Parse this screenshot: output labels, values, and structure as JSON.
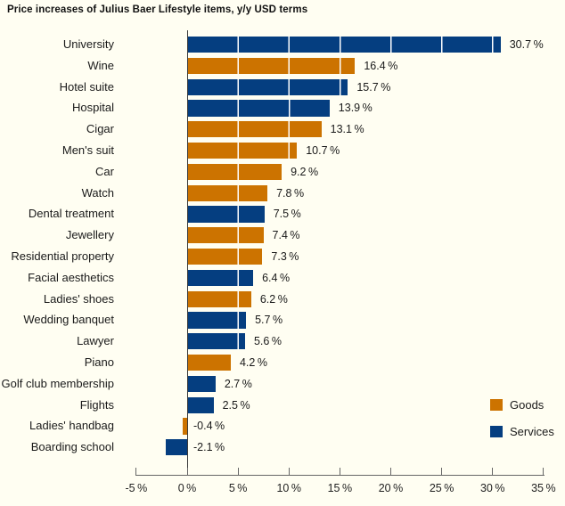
{
  "title": "Price increases of Julius Baer Lifestyle items, y/y USD terms",
  "chart_data": {
    "type": "bar",
    "orientation": "horizontal",
    "title": "Price increases of Julius Baer Lifestyle items, y/y USD terms",
    "unit": "%",
    "xlim": [
      -5,
      35
    ],
    "x_ticks": [
      -5,
      0,
      5,
      10,
      15,
      20,
      25,
      30,
      35
    ],
    "x_tick_labels": [
      "-5 %",
      "0 %",
      "5 %",
      "10 %",
      "15 %",
      "20 %",
      "25 %",
      "30 %",
      "35 %"
    ],
    "grid": "white vertical gridlines at 5% steps over bars",
    "background": "#FFFEF2",
    "colors": {
      "Goods": "#CC7300",
      "Services": "#053E80"
    },
    "legend_position": "bottom-right",
    "legend": [
      {
        "label": "Goods",
        "color": "#CC7300"
      },
      {
        "label": "Services",
        "color": "#053E80"
      }
    ],
    "items": [
      {
        "label": "University",
        "value": 30.7,
        "group": "Services",
        "value_label": "30.7 %"
      },
      {
        "label": "Wine",
        "value": 16.4,
        "group": "Goods",
        "value_label": "16.4 %"
      },
      {
        "label": "Hotel suite",
        "value": 15.7,
        "group": "Services",
        "value_label": "15.7 %"
      },
      {
        "label": "Hospital",
        "value": 13.9,
        "group": "Services",
        "value_label": "13.9 %"
      },
      {
        "label": "Cigar",
        "value": 13.1,
        "group": "Goods",
        "value_label": "13.1 %"
      },
      {
        "label": "Men's suit",
        "value": 10.7,
        "group": "Goods",
        "value_label": "10.7 %"
      },
      {
        "label": "Car",
        "value": 9.2,
        "group": "Goods",
        "value_label": "9.2 %"
      },
      {
        "label": "Watch",
        "value": 7.8,
        "group": "Goods",
        "value_label": "7.8 %"
      },
      {
        "label": "Dental treatment",
        "value": 7.5,
        "group": "Services",
        "value_label": "7.5 %"
      },
      {
        "label": "Jewellery",
        "value": 7.4,
        "group": "Goods",
        "value_label": "7.4 %"
      },
      {
        "label": "Residential property",
        "value": 7.3,
        "group": "Goods",
        "value_label": "7.3 %"
      },
      {
        "label": "Facial aesthetics",
        "value": 6.4,
        "group": "Services",
        "value_label": "6.4 %"
      },
      {
        "label": "Ladies' shoes",
        "value": 6.2,
        "group": "Goods",
        "value_label": "6.2 %"
      },
      {
        "label": "Wedding banquet",
        "value": 5.7,
        "group": "Services",
        "value_label": "5.7 %"
      },
      {
        "label": "Lawyer",
        "value": 5.6,
        "group": "Services",
        "value_label": "5.6 %"
      },
      {
        "label": "Piano",
        "value": 4.2,
        "group": "Goods",
        "value_label": "4.2 %"
      },
      {
        "label": "Golf club membership",
        "value": 2.7,
        "group": "Services",
        "value_label": "2.7 %"
      },
      {
        "label": "Flights",
        "value": 2.5,
        "group": "Services",
        "value_label": "2.5 %"
      },
      {
        "label": "Ladies' handbag",
        "value": -0.4,
        "group": "Goods",
        "value_label": "-0.4 %"
      },
      {
        "label": "Boarding school",
        "value": -2.1,
        "group": "Services",
        "value_label": "-2.1 %"
      }
    ]
  }
}
